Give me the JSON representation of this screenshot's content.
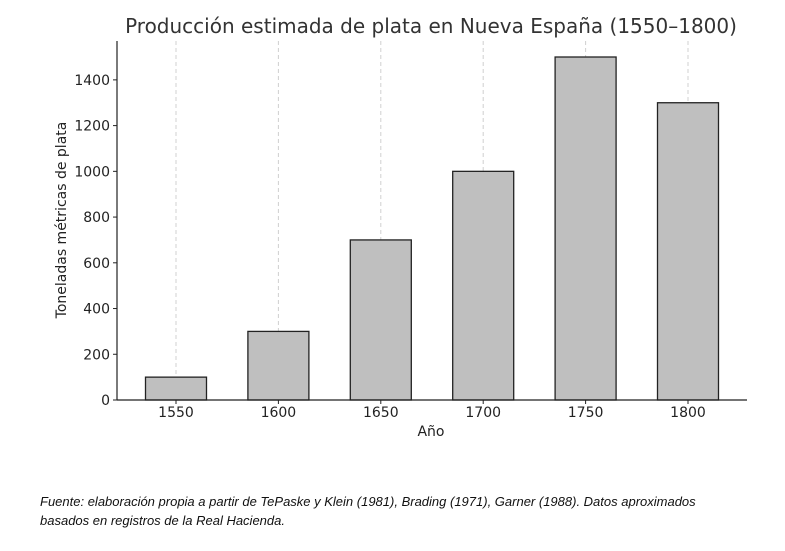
{
  "chart_data": {
    "type": "bar",
    "title": "Producción estimada de plata en Nueva España (1550–1800)",
    "xlabel": "Año",
    "ylabel": "Toneladas métricas de plata",
    "categories": [
      "1550",
      "1600",
      "1650",
      "1700",
      "1750",
      "1800"
    ],
    "values": [
      100,
      300,
      700,
      1000,
      1500,
      1300
    ],
    "ylim": [
      0,
      1570
    ],
    "yticks": [
      0,
      200,
      400,
      600,
      800,
      1000,
      1200,
      1400
    ],
    "grid": "vertical-dashed",
    "colors": {
      "bar_fill": "#bfbfbf",
      "bar_edge": "#222222",
      "grid": "#d0d0d0"
    }
  },
  "caption": "Fuente: elaboración propia a partir de TePaske y Klein (1981), Brading (1971), Garner (1988). Datos aproximados basados en registros de la Real Hacienda."
}
